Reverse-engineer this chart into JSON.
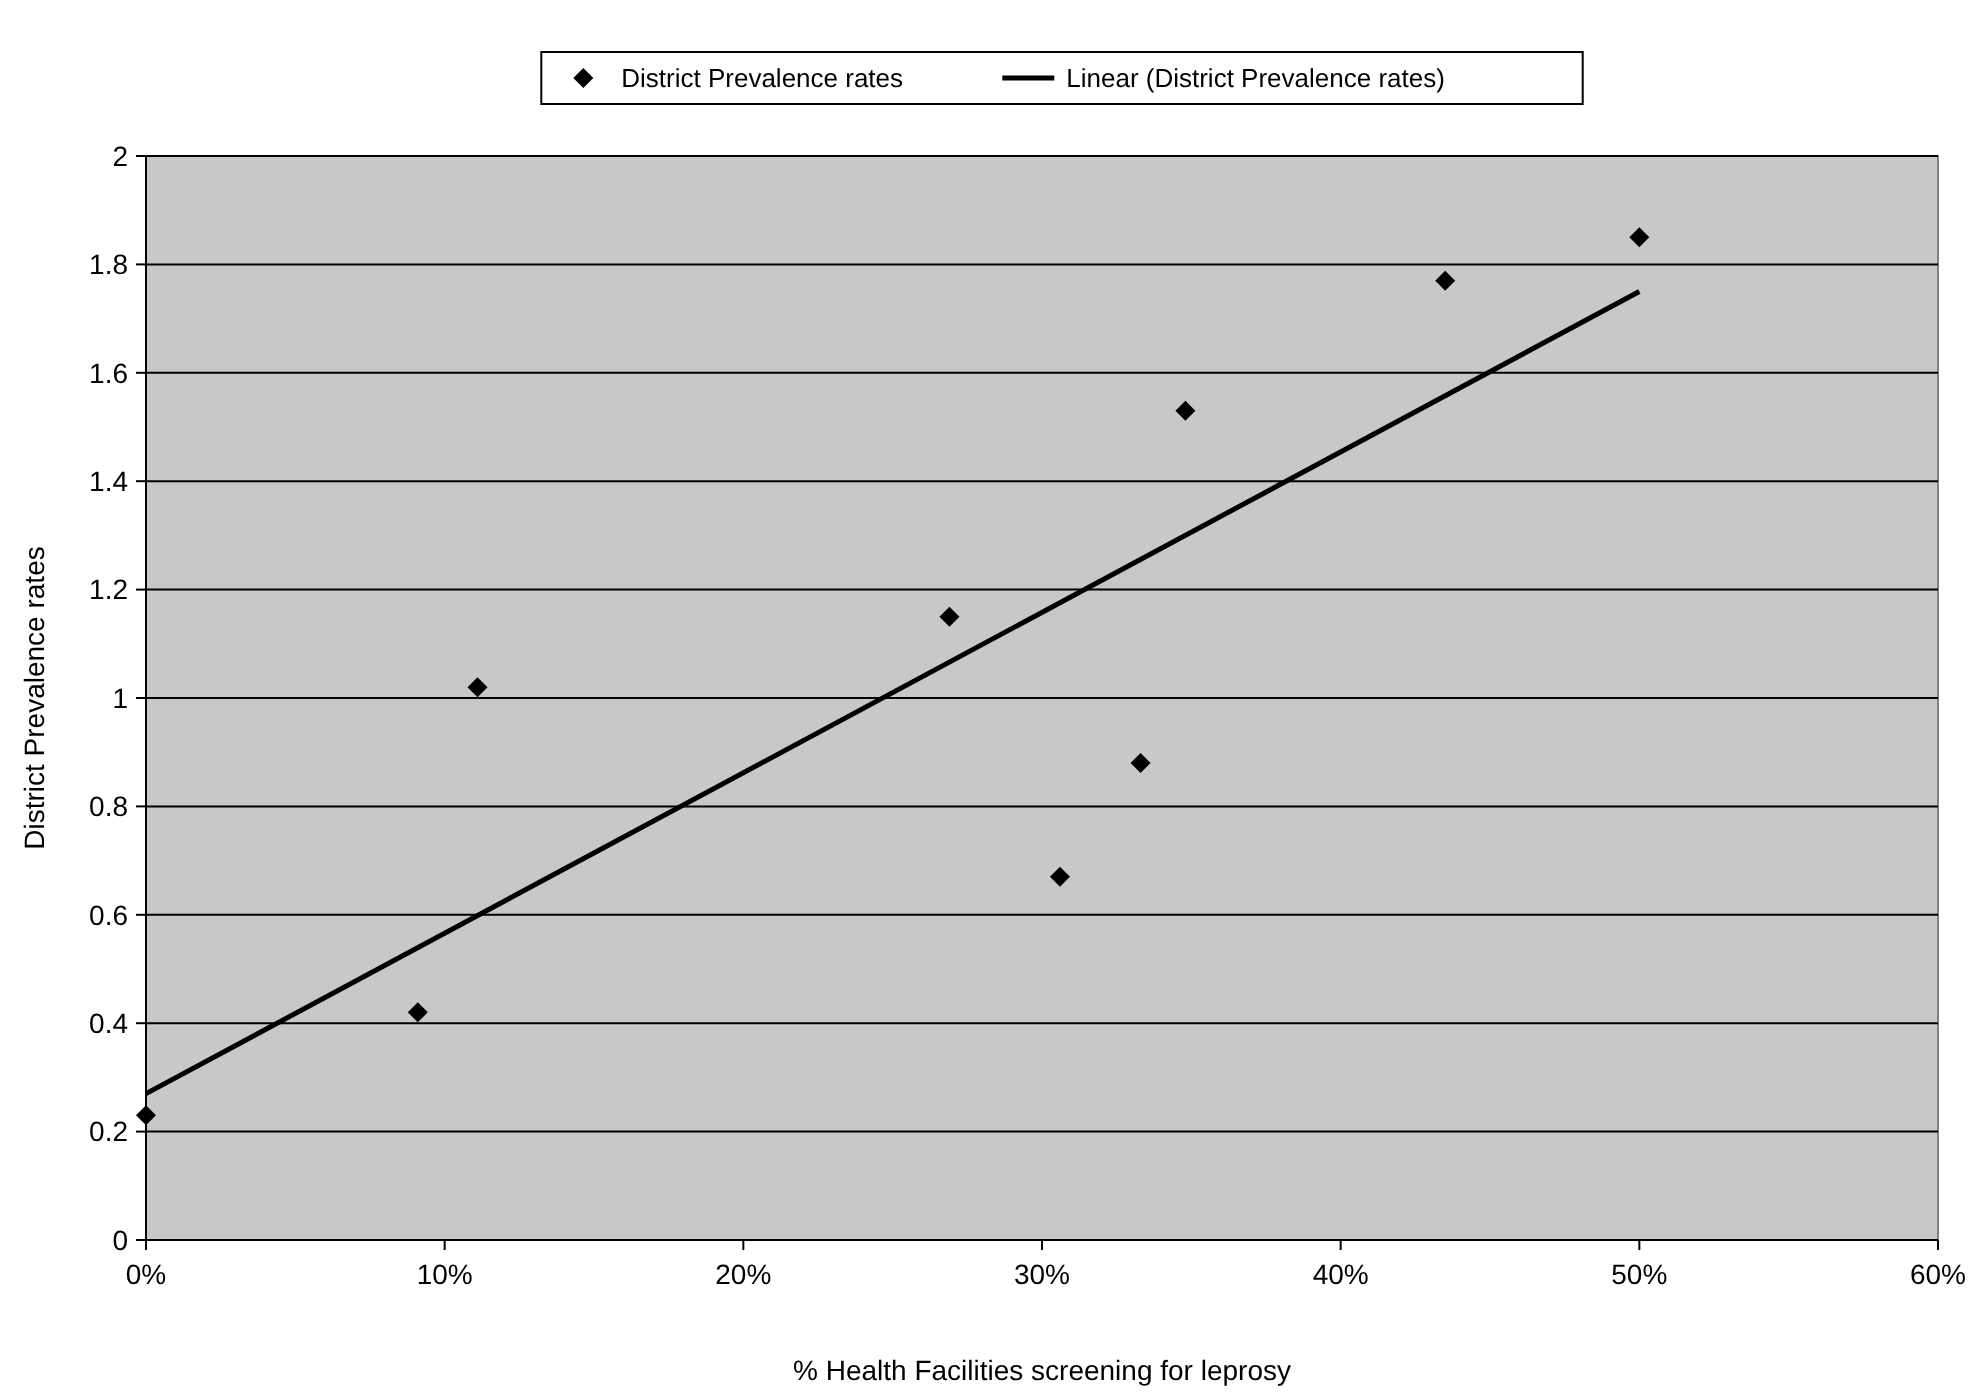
{
  "chart_data": {
    "type": "scatter",
    "xlabel": "% Health Facilities screening for leprosy",
    "ylabel": "District Prevalence rates",
    "series": [
      {
        "name": "District Prevalence rates",
        "color": "#000000",
        "marker": "diamond",
        "x": [
          0,
          9.1,
          11.1,
          26.9,
          30.6,
          33.3,
          34.8,
          43.5,
          50
        ],
        "values": [
          0.23,
          0.42,
          1.02,
          1.15,
          0.67,
          0.88,
          1.53,
          1.77,
          1.85
        ]
      },
      {
        "name": "Linear (District Prevalence rates)",
        "type": "line",
        "color": "#000000",
        "marker": "none",
        "line_style": "solid",
        "x": [
          0,
          50
        ],
        "values": [
          0.27,
          1.75
        ]
      }
    ],
    "xlim": [
      0,
      60
    ],
    "xticks": [
      {
        "value": 0,
        "label": "0%"
      },
      {
        "value": 10,
        "label": "10%"
      },
      {
        "value": 20,
        "label": "20%"
      },
      {
        "value": 30,
        "label": "30%"
      },
      {
        "value": 40,
        "label": "40%"
      },
      {
        "value": 50,
        "label": "50%"
      },
      {
        "value": 60,
        "label": "60%"
      }
    ],
    "ylim": [
      0,
      2
    ],
    "yticks": [
      0,
      0.2,
      0.4,
      0.6,
      0.8,
      1,
      1.2,
      1.4,
      1.6,
      1.8,
      2
    ],
    "grid": "y",
    "legend": "top"
  }
}
